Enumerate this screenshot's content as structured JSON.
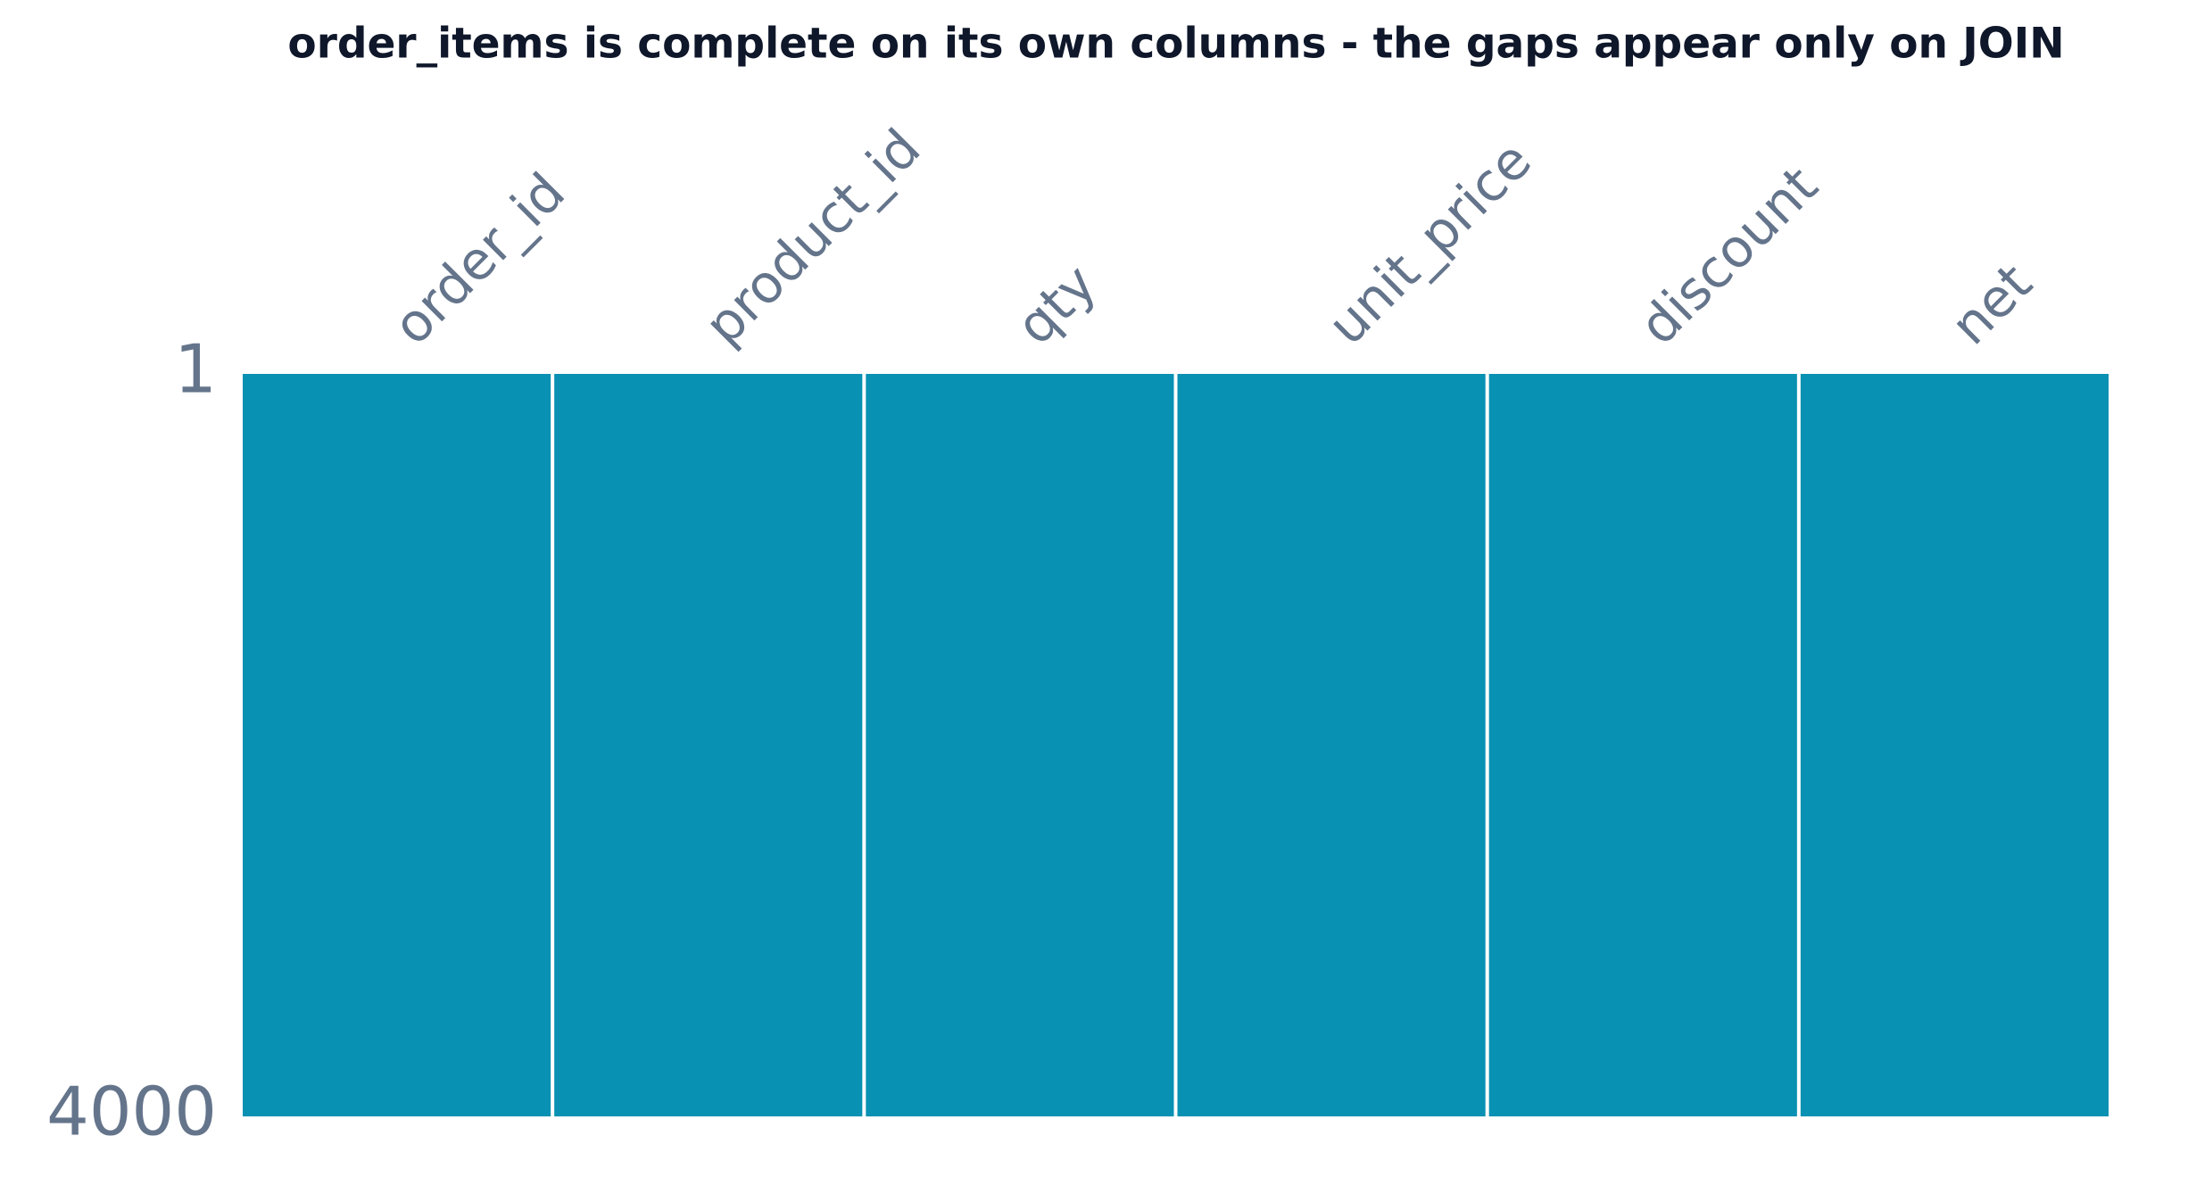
{
  "chart_data": {
    "type": "matrix",
    "title": "order_items is complete on its own columns - the gaps appear only on JOIN",
    "categories": [
      "order_id",
      "product_id",
      "qty",
      "unit_price",
      "discount",
      "net"
    ],
    "values": [
      4000,
      4000,
      4000,
      4000,
      4000,
      4000
    ],
    "color": "#0891b2",
    "ylim": [
      1,
      4000
    ],
    "yticks": [
      1,
      4000
    ]
  }
}
